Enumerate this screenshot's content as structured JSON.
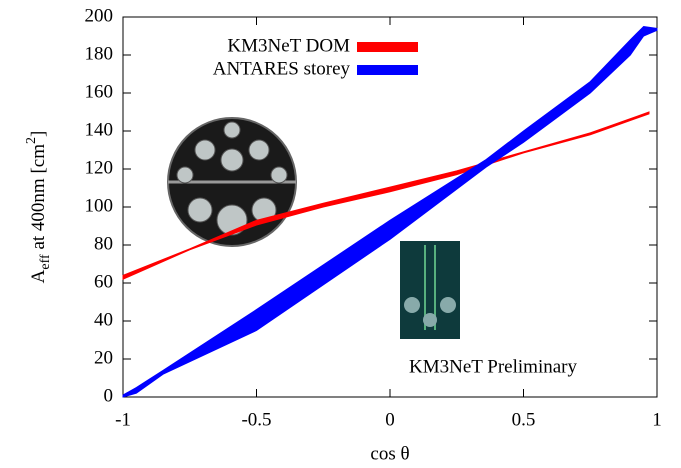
{
  "chart_data": {
    "type": "band",
    "xlabel": "cos θ",
    "ylabel": [
      "A",
      "eff",
      " at 400nm [cm",
      "2",
      "]"
    ],
    "annotation": "KM3NeT Preliminary",
    "xlim": [
      -1,
      1
    ],
    "xticks": [
      -1,
      -0.5,
      0,
      0.5,
      1
    ],
    "ylim": [
      0,
      200
    ],
    "yticks": [
      0,
      20,
      40,
      60,
      80,
      100,
      120,
      140,
      160,
      180,
      200
    ],
    "legend": "top-left",
    "series": [
      {
        "name": "KM3NeT DOM",
        "color": "#ff0000",
        "x": [
          -1,
          -0.75,
          -0.5,
          -0.25,
          0,
          0.25,
          0.5,
          0.75,
          0.97
        ],
        "lower": [
          62,
          77.5,
          90.5,
          100,
          108,
          117,
          128.5,
          138,
          149
        ],
        "upper": [
          64,
          78,
          93,
          102,
          110.5,
          119,
          129,
          139,
          150
        ]
      },
      {
        "name": "ANTARES storey",
        "color": "#0000ff",
        "x": [
          -1,
          -0.95,
          -0.85,
          -0.5,
          0,
          0.36,
          0.5,
          0.75,
          0.9,
          0.95,
          1
        ],
        "lower": [
          0,
          2,
          12,
          35,
          83,
          121,
          134,
          160,
          180,
          190,
          193
        ],
        "upper": [
          1,
          5,
          14,
          46,
          93,
          125,
          140,
          166,
          188,
          195,
          194
        ]
      }
    ]
  }
}
